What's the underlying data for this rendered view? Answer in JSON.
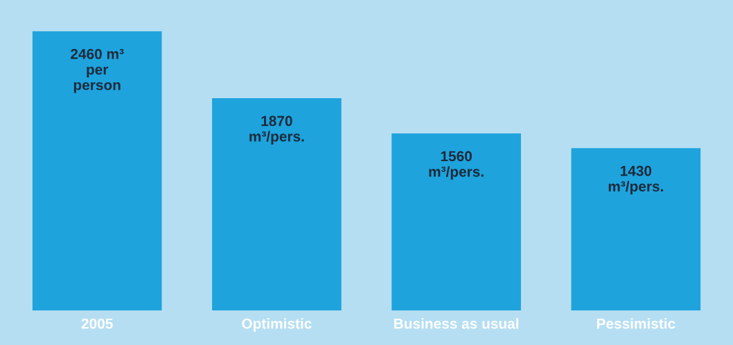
{
  "chart_data": {
    "type": "bar",
    "categories": [
      "2005",
      "Optimistic",
      "Business as usual",
      "Pessimistic"
    ],
    "values": [
      2460,
      1870,
      1560,
      1430
    ],
    "value_labels": [
      "2460 m³\nper\nperson",
      "1870\nm³/pers.",
      "1560\nm³/pers.",
      "1430\nm³/pers."
    ],
    "color": "#1ea3dd",
    "tick_labels": "x",
    "grid": false,
    "legend": false
  }
}
